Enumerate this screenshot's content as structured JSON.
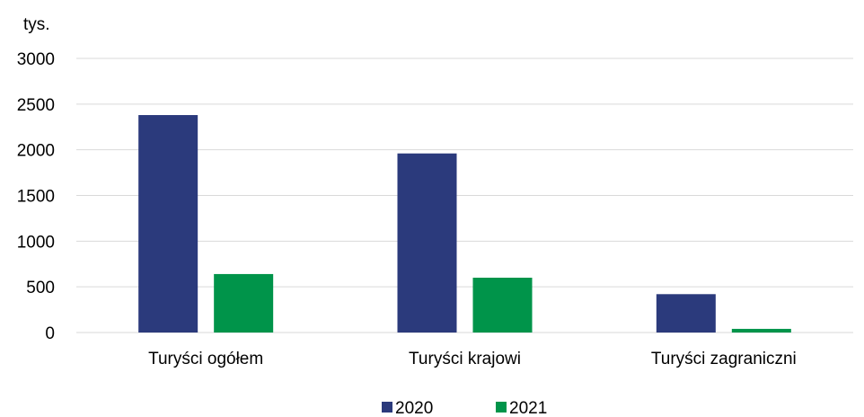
{
  "chart_data": {
    "type": "bar",
    "unit_label": "tys.",
    "categories": [
      "Turyści ogółem",
      "Turyści krajowi",
      "Turyści zagraniczni"
    ],
    "series": [
      {
        "name": "2020",
        "color": "#2b3a7c",
        "values": [
          2380,
          1960,
          420
        ]
      },
      {
        "name": "2021",
        "color": "#00944a",
        "values": [
          640,
          600,
          40
        ]
      }
    ],
    "ylim": [
      0,
      3000
    ],
    "yticks": [
      0,
      500,
      1000,
      1500,
      2000,
      2500,
      3000
    ],
    "grid": true,
    "legend_position": "bottom"
  }
}
